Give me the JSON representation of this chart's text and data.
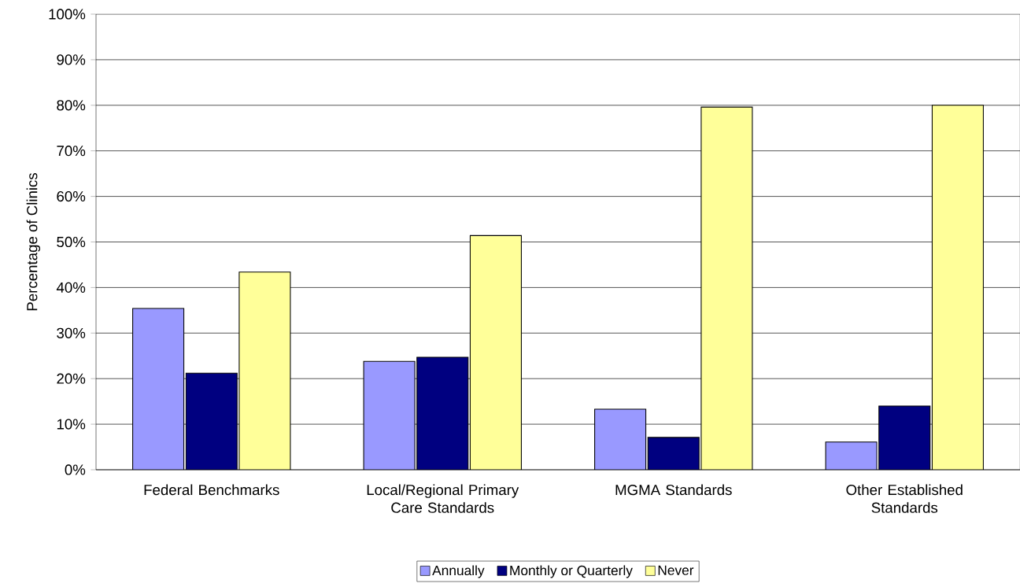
{
  "chart_data": {
    "type": "bar",
    "ylabel": "Percentage of Clinics",
    "categories": [
      "Federal Benchmarks",
      "Local/Regional Primary Care Standards",
      "MGMA Standards",
      "Other Established Standards"
    ],
    "series": [
      {
        "name": "Annually",
        "color": "#9999ff",
        "values": [
          35.4,
          23.8,
          13.3,
          6.1
        ]
      },
      {
        "name": "Monthly or Quarterly",
        "color": "#000080",
        "values": [
          21.2,
          24.7,
          7.1,
          14.0
        ]
      },
      {
        "name": "Never",
        "color": "#ffff99",
        "values": [
          43.4,
          51.4,
          79.6,
          80.0
        ]
      }
    ],
    "ylim": [
      0,
      100
    ],
    "yticks": [
      {
        "value": 0,
        "label": "0%"
      },
      {
        "value": 10,
        "label": "10%"
      },
      {
        "value": 20,
        "label": "20%"
      },
      {
        "value": 30,
        "label": "30%"
      },
      {
        "value": 40,
        "label": "40%"
      },
      {
        "value": 50,
        "label": "50%"
      },
      {
        "value": 60,
        "label": "60%"
      },
      {
        "value": 70,
        "label": "70%"
      },
      {
        "value": 80,
        "label": "80%"
      },
      {
        "value": 90,
        "label": "90%"
      },
      {
        "value": 100,
        "label": "100%"
      }
    ],
    "grid": "y",
    "legend": "bottom"
  }
}
